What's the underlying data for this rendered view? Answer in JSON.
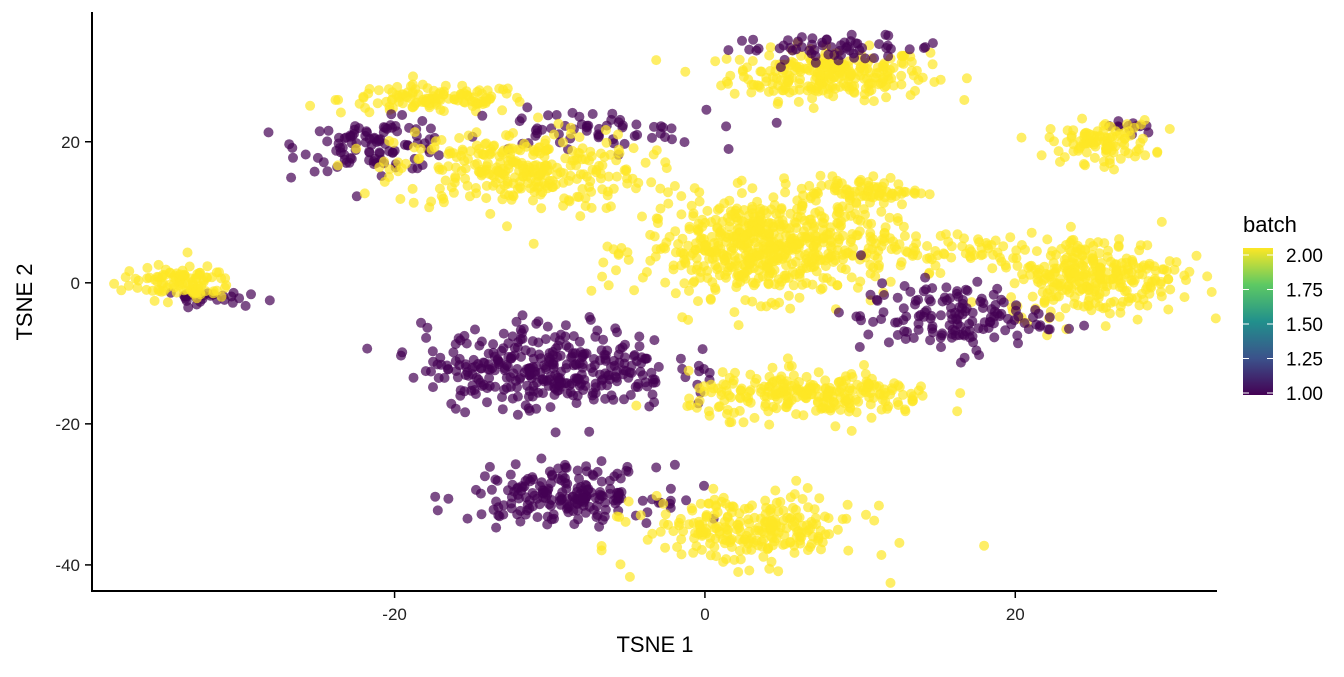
{
  "chart_data": {
    "type": "scatter",
    "title": "",
    "xlabel": "TSNE 1",
    "ylabel": "TSNE 2",
    "xlim": [
      -39.5,
      33
    ],
    "ylim": [
      -43.7,
      38.4
    ],
    "x_ticks": [
      -20,
      0,
      20
    ],
    "y_ticks": [
      -40,
      -20,
      0,
      20
    ],
    "x_tick_labels": [
      "-20",
      "0",
      "20"
    ],
    "y_tick_labels": [
      "-40",
      "-20",
      "0",
      "20"
    ],
    "grid": false,
    "point_alpha": 0.7,
    "legend": {
      "title": "batch",
      "type": "colorbar",
      "placement": "right",
      "range": [
        1,
        2
      ],
      "tick_labels": [
        "2.00",
        "1.75",
        "1.50",
        "1.25",
        "1.00"
      ],
      "ticks": [
        2.0,
        1.75,
        1.5,
        1.25,
        1.0
      ],
      "colors": [
        "#440154",
        "#3B528B",
        "#21908C",
        "#5DC963",
        "#FDE725"
      ]
    },
    "clusters": [
      {
        "x": 8,
        "y": 29.5,
        "sx": 3.2,
        "sy": 1.8,
        "n": 250,
        "batch": 2
      },
      {
        "x": 8.5,
        "y": 33.3,
        "sx": 3.5,
        "sy": 0.8,
        "n": 60,
        "batch": 1
      },
      {
        "x": -17.5,
        "y": 26,
        "sx": 3,
        "sy": 1,
        "n": 120,
        "batch": 2
      },
      {
        "x": -21,
        "y": 19.5,
        "sx": 2.5,
        "sy": 1.8,
        "n": 100,
        "batch": 1
      },
      {
        "x": -8,
        "y": 21.5,
        "sx": 4,
        "sy": 1.5,
        "n": 60,
        "batch": 1
      },
      {
        "x": -12,
        "y": 16,
        "sx": 4,
        "sy": 2.8,
        "n": 300,
        "batch": 2
      },
      {
        "x": 27.5,
        "y": 22,
        "sx": 1,
        "sy": 0.6,
        "n": 12,
        "batch": 1
      },
      {
        "x": 25.5,
        "y": 20,
        "sx": 1.7,
        "sy": 1.5,
        "n": 100,
        "batch": 2
      },
      {
        "x": 4,
        "y": 5,
        "sx": 4,
        "sy": 3.5,
        "n": 600,
        "batch": 2
      },
      {
        "x": 10,
        "y": 13,
        "sx": 2,
        "sy": 1,
        "n": 80,
        "batch": 2
      },
      {
        "x": 16,
        "y": 5,
        "sx": 3,
        "sy": 1.5,
        "n": 50,
        "batch": 2
      },
      {
        "x": 25,
        "y": 1,
        "sx": 2.8,
        "sy": 2.8,
        "n": 300,
        "batch": 2
      },
      {
        "x": 16,
        "y": -5,
        "sx": 3,
        "sy": 2.5,
        "n": 150,
        "batch": 1
      },
      {
        "x": -33,
        "y": -2,
        "sx": 1.5,
        "sy": 0.5,
        "n": 30,
        "batch": 1
      },
      {
        "x": -34,
        "y": 0,
        "sx": 1.8,
        "sy": 1.2,
        "n": 100,
        "batch": 2
      },
      {
        "x": -10,
        "y": -12,
        "sx": 4,
        "sy": 3,
        "n": 350,
        "batch": 1
      },
      {
        "x": 7,
        "y": -16,
        "sx": 4,
        "sy": 1.6,
        "n": 250,
        "batch": 2
      },
      {
        "x": -9,
        "y": -30,
        "sx": 3,
        "sy": 2,
        "n": 200,
        "batch": 1
      },
      {
        "x": 3,
        "y": -35,
        "sx": 3.5,
        "sy": 2.5,
        "n": 250,
        "batch": 2
      }
    ]
  }
}
